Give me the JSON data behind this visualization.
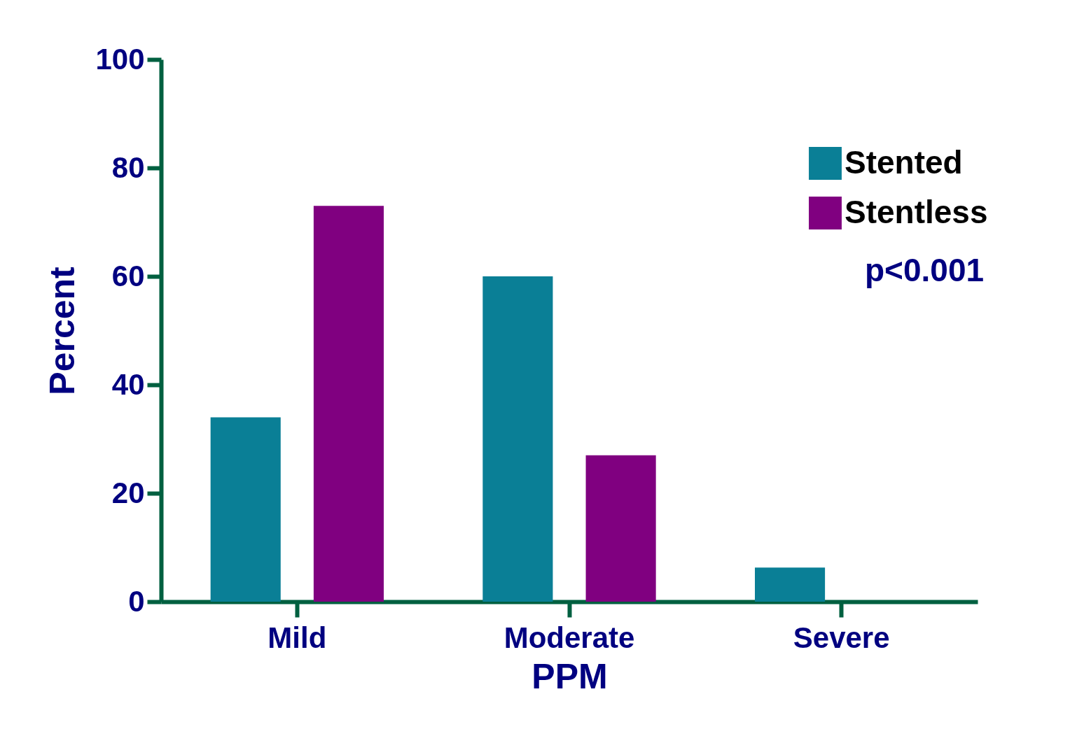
{
  "chart_data": {
    "type": "bar",
    "xlabel": "PPM",
    "ylabel": "Percent",
    "categories": [
      "Mild",
      "Moderate",
      "Severe"
    ],
    "series": [
      {
        "name": "Stented",
        "color": "#0a7f96",
        "values": [
          34,
          60,
          6.3
        ]
      },
      {
        "name": "Stentless",
        "color": "#800080",
        "values": [
          73,
          27,
          null
        ]
      }
    ],
    "ylim": [
      0,
      100
    ],
    "yticks": [
      0,
      20,
      40,
      60,
      80,
      100
    ],
    "grid": false,
    "legend": "top right",
    "annotations": [
      "p<0.001"
    ]
  }
}
